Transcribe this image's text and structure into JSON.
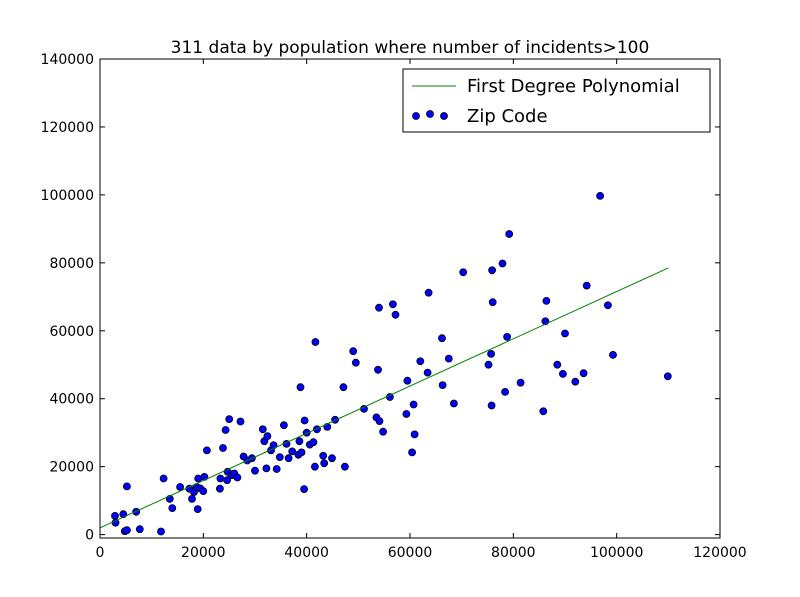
{
  "chart_data": {
    "type": "scatter",
    "title": "311 data by population where number of incidents>100",
    "xlabel": "",
    "ylabel": "",
    "xlim": [
      0,
      120000
    ],
    "ylim": [
      -1000,
      140000
    ],
    "x_ticks": [
      0,
      20000,
      40000,
      60000,
      80000,
      100000,
      120000
    ],
    "y_ticks": [
      0,
      20000,
      40000,
      60000,
      80000,
      100000,
      120000,
      140000
    ],
    "x_tick_labels": [
      "0",
      "20000",
      "40000",
      "60000",
      "80000",
      "100000",
      "120000"
    ],
    "y_tick_labels": [
      "0",
      "20000",
      "40000",
      "60000",
      "80000",
      "100000",
      "120000",
      "140000"
    ],
    "grid": false,
    "legend_position": "top-right",
    "series": [
      {
        "name": "First Degree Polynomial",
        "type": "line",
        "color": "#008000",
        "x": [
          0,
          110000
        ],
        "y": [
          2000,
          78500
        ]
      },
      {
        "name": "Zip Code",
        "type": "scatter",
        "color": "#0000ff",
        "points": [
          [
            2900,
            5500
          ],
          [
            3000,
            3500
          ],
          [
            4500,
            6000
          ],
          [
            4800,
            1000
          ],
          [
            5200,
            1300
          ],
          [
            5200,
            14200
          ],
          [
            7000,
            6700
          ],
          [
            7700,
            1600
          ],
          [
            11800,
            900
          ],
          [
            12300,
            16500
          ],
          [
            13500,
            10500
          ],
          [
            14000,
            7800
          ],
          [
            15500,
            14000
          ],
          [
            17300,
            13500
          ],
          [
            17800,
            10500
          ],
          [
            18200,
            12500
          ],
          [
            18700,
            14000
          ],
          [
            18900,
            7500
          ],
          [
            19000,
            16500
          ],
          [
            19400,
            13600
          ],
          [
            20000,
            12800
          ],
          [
            20200,
            17000
          ],
          [
            20700,
            24800
          ],
          [
            23200,
            13500
          ],
          [
            23300,
            16500
          ],
          [
            23800,
            25500
          ],
          [
            24300,
            30800
          ],
          [
            24600,
            16000
          ],
          [
            24700,
            18500
          ],
          [
            25000,
            34000
          ],
          [
            25500,
            17500
          ],
          [
            26000,
            18000
          ],
          [
            26600,
            16800
          ],
          [
            27200,
            33300
          ],
          [
            27800,
            23000
          ],
          [
            28500,
            21800
          ],
          [
            29400,
            22500
          ],
          [
            30000,
            18800
          ],
          [
            31500,
            31000
          ],
          [
            31800,
            27500
          ],
          [
            32200,
            19500
          ],
          [
            32400,
            29000
          ],
          [
            33100,
            24800
          ],
          [
            33600,
            26300
          ],
          [
            34200,
            19300
          ],
          [
            34800,
            22800
          ],
          [
            35600,
            32200
          ],
          [
            36100,
            26700
          ],
          [
            36500,
            22500
          ],
          [
            37200,
            24500
          ],
          [
            38400,
            23500
          ],
          [
            38600,
            27500
          ],
          [
            38800,
            43400
          ],
          [
            39000,
            24200
          ],
          [
            39500,
            13400
          ],
          [
            39600,
            33600
          ],
          [
            40000,
            30000
          ],
          [
            40600,
            26500
          ],
          [
            41300,
            27200
          ],
          [
            41600,
            20000
          ],
          [
            41700,
            56700
          ],
          [
            42000,
            31000
          ],
          [
            43200,
            23200
          ],
          [
            43400,
            21000
          ],
          [
            44000,
            31700
          ],
          [
            44900,
            22500
          ],
          [
            45500,
            33800
          ],
          [
            47100,
            43400
          ],
          [
            47400,
            20000
          ],
          [
            49000,
            54000
          ],
          [
            49500,
            50600
          ],
          [
            51100,
            37000
          ],
          [
            53500,
            34500
          ],
          [
            53800,
            48500
          ],
          [
            54000,
            66800
          ],
          [
            54100,
            33400
          ],
          [
            54800,
            30300
          ],
          [
            56100,
            40500
          ],
          [
            56700,
            67800
          ],
          [
            57200,
            64700
          ],
          [
            59300,
            35500
          ],
          [
            59500,
            45300
          ],
          [
            60400,
            24200
          ],
          [
            60700,
            38300
          ],
          [
            60900,
            29500
          ],
          [
            62000,
            51000
          ],
          [
            63400,
            47700
          ],
          [
            63600,
            71200
          ],
          [
            66200,
            57800
          ],
          [
            66300,
            44000
          ],
          [
            67500,
            51800
          ],
          [
            68500,
            38600
          ],
          [
            70300,
            77200
          ],
          [
            75200,
            50000
          ],
          [
            75700,
            53200
          ],
          [
            75800,
            38000
          ],
          [
            75900,
            77800
          ],
          [
            76000,
            68400
          ],
          [
            77900,
            79800
          ],
          [
            78400,
            42000
          ],
          [
            78800,
            58200
          ],
          [
            79200,
            88500
          ],
          [
            81400,
            44700
          ],
          [
            85800,
            36300
          ],
          [
            86200,
            62800
          ],
          [
            86400,
            68800
          ],
          [
            88500,
            50000
          ],
          [
            89600,
            47300
          ],
          [
            90000,
            59200
          ],
          [
            92000,
            45000
          ],
          [
            93600,
            47500
          ],
          [
            94200,
            73300
          ],
          [
            96800,
            99700
          ],
          [
            98300,
            67500
          ],
          [
            99300,
            52900
          ],
          [
            109900,
            46600
          ]
        ]
      }
    ]
  }
}
